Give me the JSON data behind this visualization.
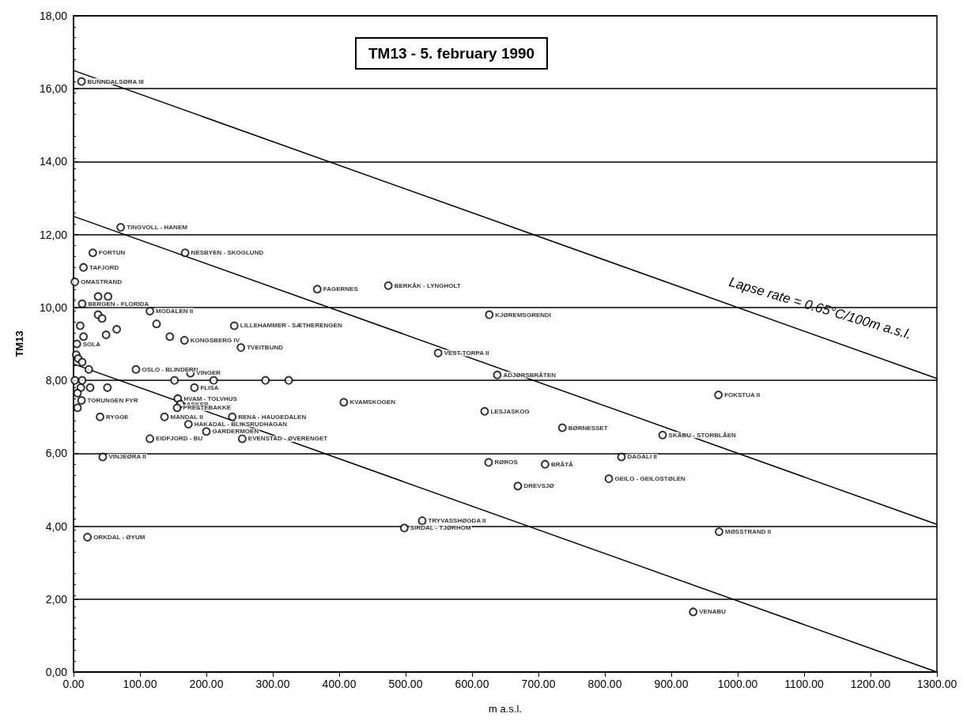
{
  "chart_data": {
    "type": "scatter",
    "title": "TM13 - 5. february 1990",
    "xlabel": "m a.s.l.",
    "ylabel": "TM13",
    "xlim": [
      0,
      1300
    ],
    "ylim": [
      0,
      18
    ],
    "xticks": [
      {
        "value": 0,
        "label": "0.00"
      },
      {
        "value": 100,
        "label": "100.00"
      },
      {
        "value": 200,
        "label": "200.00"
      },
      {
        "value": 300,
        "label": "300.00"
      },
      {
        "value": 400,
        "label": "400.00"
      },
      {
        "value": 500,
        "label": "500.00"
      },
      {
        "value": 600,
        "label": "600.00"
      },
      {
        "value": 700,
        "label": "700.00"
      },
      {
        "value": 800,
        "label": "800.00"
      },
      {
        "value": 900,
        "label": "900.00"
      },
      {
        "value": 1000,
        "label": "1000.00"
      },
      {
        "value": 1100,
        "label": "1100.00"
      },
      {
        "value": 1200,
        "label": "1200.00"
      },
      {
        "value": 1300,
        "label": "1300.00"
      }
    ],
    "yticks": [
      {
        "value": 0,
        "label": "0,00"
      },
      {
        "value": 2,
        "label": "2,00"
      },
      {
        "value": 4,
        "label": "4,00"
      },
      {
        "value": 6,
        "label": "6,00"
      },
      {
        "value": 8,
        "label": "8,00"
      },
      {
        "value": 10,
        "label": "10,00"
      },
      {
        "value": 12,
        "label": "12,00"
      },
      {
        "value": 14,
        "label": "14,00"
      },
      {
        "value": 16,
        "label": "16,00"
      },
      {
        "value": 18,
        "label": "18,00"
      }
    ],
    "grid": "y",
    "marker": "circle",
    "annotations": [
      "Lapse rate = 0.65°C/100m a.s.l."
    ],
    "series": [
      {
        "color": "#000000",
        "x": [
          12,
          71,
          29,
          168,
          15,
          2,
          37,
          52,
          13,
          367,
          474,
          115,
          37,
          43,
          10,
          125,
          65,
          242,
          626,
          15,
          49,
          145,
          167,
          5,
          252,
          549,
          4,
          7,
          13,
          23,
          94,
          176,
          638,
          971,
          2,
          13,
          152,
          211,
          289,
          324,
          11,
          25,
          51,
          182,
          6,
          12,
          157,
          161,
          407,
          6,
          156,
          619,
          40,
          137,
          239,
          173,
          736,
          200,
          887,
          115,
          254,
          44,
          825,
          625,
          710,
          806,
          669,
          525,
          498,
          972,
          21,
          933
        ],
        "values": [
          16.2,
          12.2,
          11.5,
          11.5,
          11.1,
          10.7,
          10.3,
          10.3,
          10.1,
          10.5,
          10.6,
          9.9,
          9.8,
          9.7,
          9.5,
          9.55,
          9.4,
          9.5,
          9.8,
          9.2,
          9.25,
          9.2,
          9.1,
          9.0,
          8.9,
          8.75,
          8.7,
          8.6,
          8.5,
          8.3,
          8.3,
          8.2,
          8.15,
          7.6,
          8.0,
          8.0,
          8.0,
          8.0,
          8.0,
          8.0,
          7.8,
          7.8,
          7.8,
          7.8,
          7.65,
          7.45,
          7.5,
          7.35,
          7.4,
          7.25,
          7.25,
          7.15,
          7.0,
          7.0,
          7.0,
          6.8,
          6.7,
          6.6,
          6.5,
          6.4,
          6.4,
          5.9,
          5.9,
          5.75,
          5.7,
          5.3,
          5.1,
          4.15,
          3.95,
          3.85,
          3.7,
          1.65
        ],
        "value_labels": [
          "BUNNDALSØRA III",
          "TINGVOLL - HANEM",
          "FORTUN",
          "NESBYEN - SKOGLUND",
          "TAFJORD",
          "OMASTRAND",
          null,
          null,
          "BERGEN - FLORIDA",
          "FAGERNES",
          "BERKÅK - LYNGHOLT",
          "MODALEN II",
          null,
          null,
          null,
          null,
          null,
          "LILLEHAMMER - SÆTHERENGEN",
          "KJØREMSGRENDI",
          null,
          null,
          null,
          "KONGSBERG IV",
          "SOLA",
          "TVEITBUND",
          "VEST-TORPA II",
          null,
          null,
          null,
          null,
          "OSLO - BLINDERN",
          "VINGER",
          "ADJØRSBRÅTEN",
          "FOKSTUA II",
          null,
          null,
          null,
          null,
          null,
          null,
          null,
          null,
          null,
          "FLISA",
          null,
          "TORUNGEN FYR",
          "HVAM - TOLVHUS",
          "ASKER",
          "KVAMSKOGEN",
          null,
          "PRESTEBAKKE",
          "LESJASKOG",
          "RYGGE",
          "MANDAL II",
          "RENA - HAUGEDALEN",
          "HAKADAL - BLIKSRUDHAGAN",
          "BØRNESSET",
          "GARDERMOEN",
          "SKÅBU - STORBLÅEN",
          "EIDFJORD - BU",
          "EVENSTAD - ØVERENGET",
          "VINJEØRA II",
          "DAGALI II",
          "RØROS",
          "BRÅTÅ",
          "GEILO - GEILOSTØLEN",
          "DREVSJØ",
          "TRYVASSHØGDA II",
          "SIRDAL - TJØRHOM",
          "MØSSTRAND II",
          "ORKDAL - ØYUM",
          "VENABU"
        ]
      },
      {
        "type": "line",
        "color": "#000000",
        "marker": "none",
        "x": [
          0,
          1300
        ],
        "values": [
          16.5,
          8.05
        ]
      },
      {
        "type": "line",
        "color": "#000000",
        "marker": "none",
        "x": [
          0,
          1300
        ],
        "values": [
          12.5,
          4.05
        ]
      },
      {
        "type": "line",
        "color": "#000000",
        "marker": "none",
        "x": [
          0,
          1300
        ],
        "values": [
          8.45,
          0
        ]
      }
    ]
  }
}
